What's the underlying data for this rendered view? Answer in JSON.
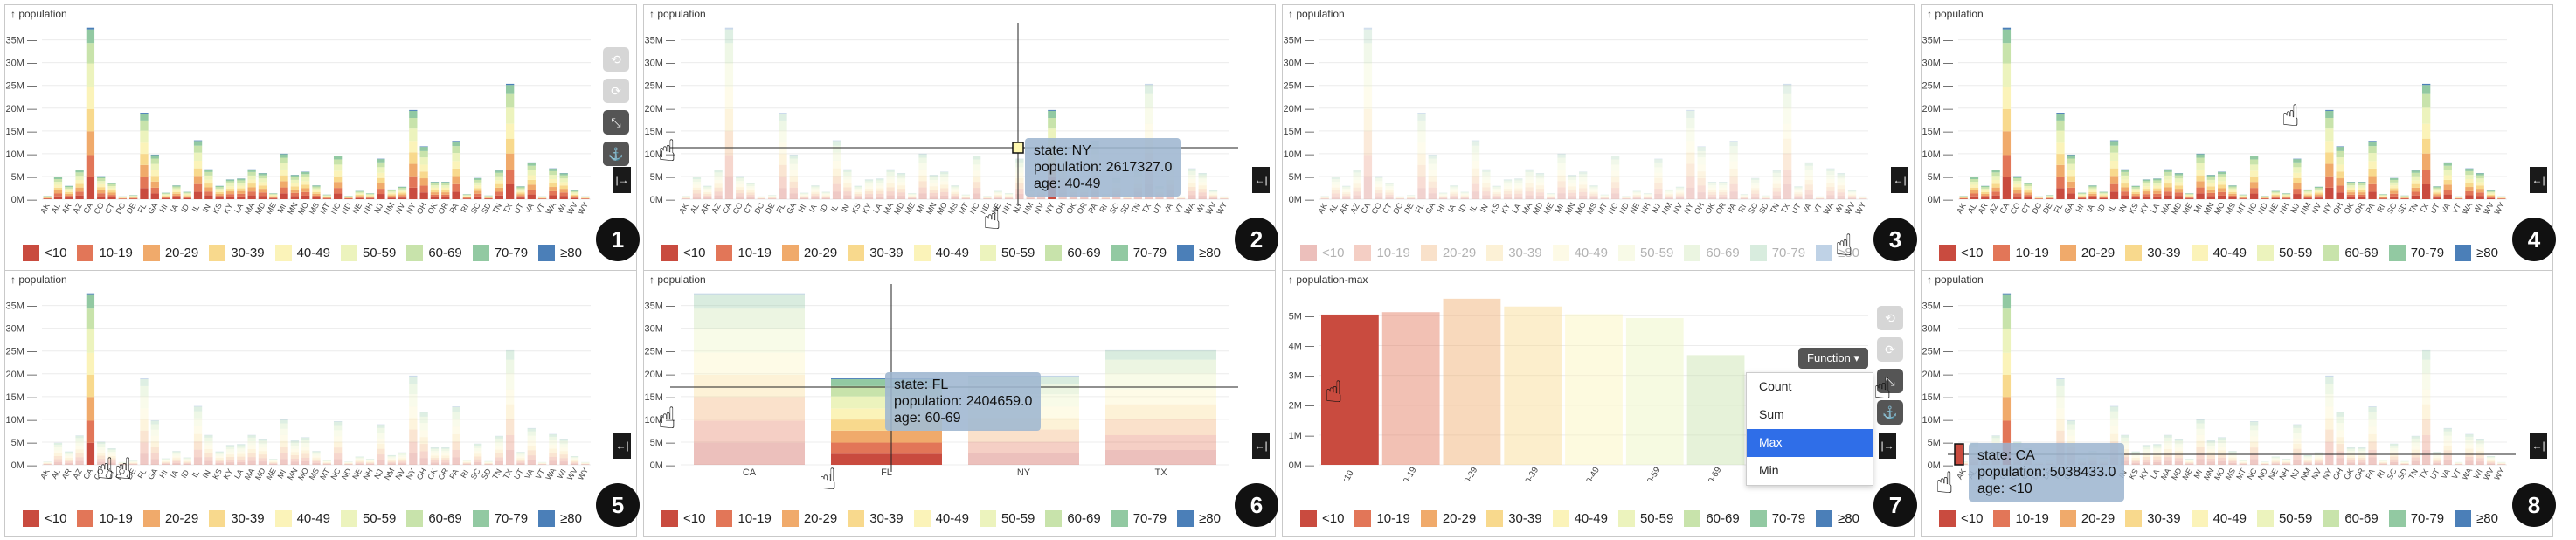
{
  "colors": {
    "age": [
      "#c94b3f",
      "#e27658",
      "#f0aa6b",
      "#f8d98d",
      "#fbf3b9",
      "#ecf3bd",
      "#c8e3ab",
      "#92c9a2",
      "#4b7fb8"
    ]
  },
  "legend": [
    "<10",
    "10-19",
    "20-29",
    "30-39",
    "40-49",
    "50-59",
    "60-69",
    "70-79",
    "≥80"
  ],
  "panels": [
    {
      "id": 1,
      "ytitle": "↑ population",
      "badge": "1"
    },
    {
      "id": 2,
      "ytitle": "↑ population",
      "badge": "2"
    },
    {
      "id": 3,
      "ytitle": "↑ population",
      "badge": "3"
    },
    {
      "id": 4,
      "ytitle": "↑ population",
      "badge": "4"
    },
    {
      "id": 5,
      "ytitle": "↑ population",
      "badge": "5"
    },
    {
      "id": 6,
      "ytitle": "↑ population",
      "badge": "6"
    },
    {
      "id": 7,
      "ytitle": "↑ population-max",
      "badge": "7"
    },
    {
      "id": 8,
      "ytitle": "↑ population",
      "badge": "8"
    }
  ],
  "tooltips": {
    "p2": [
      "state: NY",
      "population: 2617327.0",
      "age: 40-49"
    ],
    "p6": [
      "state: FL",
      "population: 2404659.0",
      "age: 60-69"
    ],
    "p8": [
      "state: CA",
      "population: 5038433.0",
      "age: <10"
    ]
  },
  "function_menu": {
    "button": "Function ▾",
    "items": [
      "Count",
      "Sum",
      "Max",
      "Min"
    ],
    "selected": "Max"
  },
  "icons": {
    "toolbar": [
      "reset-icon",
      "redo-icon",
      "collapse-icon",
      "anchor-icon"
    ],
    "side": "expand-icon"
  },
  "chart_data": [
    {
      "type": "bar",
      "stacked": true,
      "title": "",
      "ylabel": "population",
      "ylim": [
        0,
        38000000
      ],
      "yticks": [
        "0M",
        "5M",
        "10M",
        "15M",
        "20M",
        "25M",
        "30M",
        "35M"
      ],
      "categories": [
        "AK",
        "AL",
        "AR",
        "AZ",
        "CA",
        "CO",
        "CT",
        "DC",
        "DE",
        "FL",
        "GA",
        "HI",
        "IA",
        "ID",
        "IL",
        "IN",
        "KS",
        "KY",
        "LA",
        "MA",
        "MD",
        "ME",
        "MI",
        "MN",
        "MO",
        "MS",
        "MT",
        "NC",
        "ND",
        "NE",
        "NH",
        "NJ",
        "NM",
        "NV",
        "NY",
        "OH",
        "OK",
        "OR",
        "PA",
        "RI",
        "SC",
        "SD",
        "TN",
        "TX",
        "UT",
        "VA",
        "VT",
        "WA",
        "WI",
        "WV",
        "WY"
      ],
      "series_names": [
        "<10",
        "10-19",
        "20-29",
        "30-39",
        "40-49",
        "50-59",
        "60-69",
        "70-79",
        "≥80"
      ],
      "totals_m": [
        0.7,
        4.8,
        2.9,
        6.4,
        37.3,
        5.0,
        3.6,
        0.6,
        0.9,
        18.8,
        9.7,
        1.4,
        3.0,
        1.6,
        12.8,
        6.5,
        2.9,
        4.3,
        4.5,
        6.5,
        5.7,
        1.3,
        9.9,
        5.3,
        6.0,
        3.0,
        1.0,
        9.5,
        0.7,
        1.8,
        1.3,
        8.8,
        2.1,
        2.7,
        19.4,
        11.5,
        3.8,
        3.8,
        12.7,
        1.1,
        4.6,
        0.8,
        6.3,
        25.1,
        2.8,
        8.0,
        0.6,
        6.7,
        5.7,
        1.9,
        0.6
      ],
      "shares": [
        0.13,
        0.13,
        0.14,
        0.13,
        0.13,
        0.14,
        0.12,
        0.08,
        0.01
      ]
    },
    {
      "type": "bar",
      "stacked": true,
      "title": "",
      "ylabel": "population",
      "ylim": [
        0,
        38000000
      ],
      "categories": [
        "CA",
        "FL",
        "NY",
        "TX"
      ],
      "totals_m": [
        37.3,
        18.8,
        19.4,
        25.1
      ],
      "series_names": [
        "<10",
        "10-19",
        "20-29",
        "30-39",
        "40-49",
        "50-59",
        "60-69",
        "70-79",
        "≥80"
      ]
    },
    {
      "type": "bar",
      "title": "",
      "ylabel": "population-max",
      "ylim": [
        0,
        5800000
      ],
      "yticks": [
        "0M",
        "1M",
        "2M",
        "3M",
        "4M",
        "5M"
      ],
      "categories": [
        "<10",
        "10-19",
        "20-29",
        "30-39",
        "40-49",
        "50-59",
        "60-69",
        "70-79",
        "≥80"
      ],
      "values_m": [
        5.04,
        5.12,
        5.57,
        5.31,
        5.05,
        4.92,
        3.68,
        2.05,
        1.12
      ]
    }
  ]
}
